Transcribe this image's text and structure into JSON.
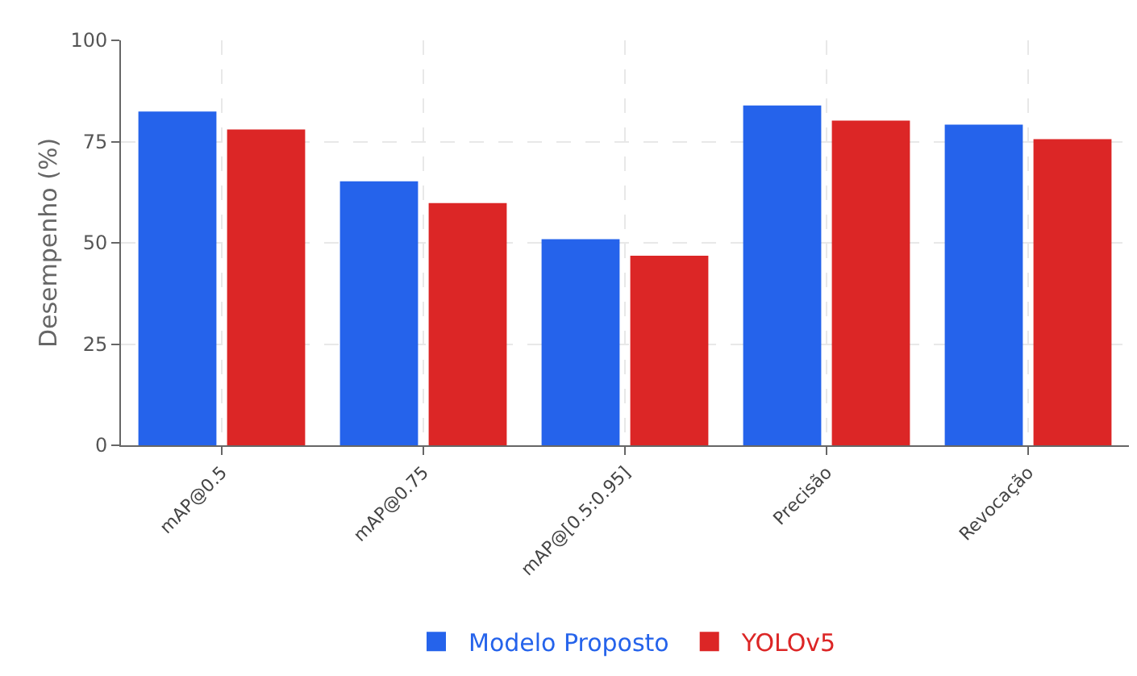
{
  "chart_data": {
    "type": "bar",
    "ylabel": "Desempenho (%)",
    "categories": [
      "mAP@0.5",
      "mAP@0.75",
      "mAP@[0.5:0.95]",
      "Precisão",
      "Revocação"
    ],
    "series": [
      {
        "name": "Modelo Proposto",
        "color": "#2563eb",
        "values": [
          82.4,
          65.2,
          50.9,
          83.9,
          79.2
        ]
      },
      {
        "name": "YOLOv5",
        "color": "#dc2626",
        "values": [
          78.0,
          59.8,
          46.8,
          80.2,
          75.6
        ]
      }
    ],
    "ylim": [
      0,
      100
    ],
    "yticks": [
      0,
      25,
      50,
      75,
      100
    ],
    "grid": true,
    "legend": "bottom"
  }
}
